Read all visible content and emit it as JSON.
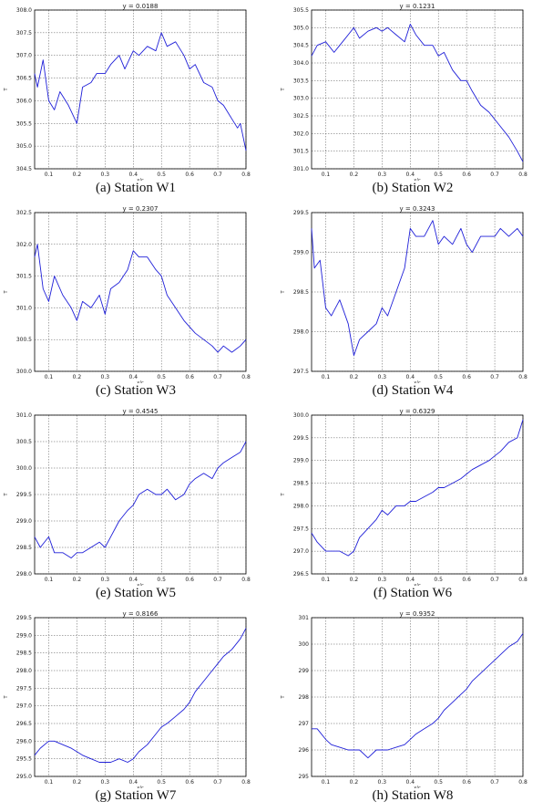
{
  "chart_data": [
    {
      "type": "line",
      "title": "y = 0.0188",
      "caption": "(a) Station W1",
      "xlabel": "x/c",
      "ylabel": "T",
      "xlim": [
        0.05,
        0.8
      ],
      "ylim": [
        304.5,
        308.0
      ],
      "xticks": [
        "0.1",
        "0.2",
        "0.3",
        "0.4",
        "0.5",
        "0.6",
        "0.7",
        "0.8"
      ],
      "yticks": [
        "304.5",
        "305.0",
        "305.5",
        "306.0",
        "306.5",
        "307.0",
        "307.5",
        "308.0"
      ],
      "grid": true,
      "series": [
        {
          "x": [
            0.05,
            0.06,
            0.08,
            0.1,
            0.12,
            0.14,
            0.17,
            0.2,
            0.22,
            0.25,
            0.27,
            0.3,
            0.32,
            0.35,
            0.37,
            0.4,
            0.42,
            0.45,
            0.48,
            0.5,
            0.52,
            0.55,
            0.58,
            0.6,
            0.62,
            0.65,
            0.68,
            0.7,
            0.72,
            0.75,
            0.77,
            0.78,
            0.8
          ],
          "y": [
            306.6,
            306.3,
            306.9,
            306.0,
            305.8,
            306.2,
            305.9,
            305.5,
            306.3,
            306.4,
            306.6,
            306.6,
            306.8,
            307.0,
            306.7,
            307.1,
            307.0,
            307.2,
            307.1,
            307.5,
            307.2,
            307.3,
            307.0,
            306.7,
            306.8,
            306.4,
            306.3,
            306.0,
            305.9,
            305.6,
            305.4,
            305.5,
            304.9
          ]
        }
      ]
    },
    {
      "type": "line",
      "title": "y = 0.1231",
      "caption": "(b) Station W2",
      "xlabel": "x/c",
      "ylabel": "T",
      "xlim": [
        0.05,
        0.8
      ],
      "ylim": [
        301.0,
        305.5
      ],
      "xticks": [
        "0.1",
        "0.2",
        "0.3",
        "0.4",
        "0.5",
        "0.6",
        "0.7",
        "0.8"
      ],
      "yticks": [
        "301.0",
        "301.5",
        "302.0",
        "302.5",
        "303.0",
        "303.5",
        "304.0",
        "304.5",
        "305.0",
        "305.5"
      ],
      "grid": true,
      "series": [
        {
          "x": [
            0.05,
            0.07,
            0.1,
            0.13,
            0.15,
            0.18,
            0.2,
            0.22,
            0.25,
            0.28,
            0.3,
            0.32,
            0.35,
            0.38,
            0.4,
            0.42,
            0.45,
            0.48,
            0.5,
            0.52,
            0.55,
            0.58,
            0.6,
            0.62,
            0.65,
            0.68,
            0.7,
            0.72,
            0.75,
            0.78,
            0.8
          ],
          "y": [
            304.2,
            304.5,
            304.6,
            304.3,
            304.5,
            304.8,
            305.0,
            304.7,
            304.9,
            305.0,
            304.9,
            305.0,
            304.8,
            304.6,
            305.1,
            304.8,
            304.5,
            304.5,
            304.2,
            304.3,
            303.8,
            303.5,
            303.5,
            303.2,
            302.8,
            302.6,
            302.4,
            302.2,
            301.9,
            301.5,
            301.2
          ]
        }
      ]
    },
    {
      "type": "line",
      "title": "y = 0.2307",
      "caption": "(c) Station W3",
      "xlabel": "x/c",
      "ylabel": "T",
      "xlim": [
        0.05,
        0.8
      ],
      "ylim": [
        300.0,
        302.5
      ],
      "xticks": [
        "0.1",
        "0.2",
        "0.3",
        "0.4",
        "0.5",
        "0.6",
        "0.7",
        "0.8"
      ],
      "yticks": [
        "300.0",
        "300.5",
        "301.0",
        "301.5",
        "302.0",
        "302.5"
      ],
      "grid": true,
      "series": [
        {
          "x": [
            0.05,
            0.06,
            0.08,
            0.1,
            0.12,
            0.15,
            0.18,
            0.2,
            0.22,
            0.25,
            0.28,
            0.3,
            0.32,
            0.35,
            0.38,
            0.4,
            0.42,
            0.45,
            0.48,
            0.5,
            0.52,
            0.55,
            0.58,
            0.6,
            0.62,
            0.65,
            0.68,
            0.7,
            0.72,
            0.75,
            0.78,
            0.8
          ],
          "y": [
            301.8,
            302.0,
            301.3,
            301.1,
            301.5,
            301.2,
            301.0,
            300.8,
            301.1,
            301.0,
            301.2,
            300.9,
            301.3,
            301.4,
            301.6,
            301.9,
            301.8,
            301.8,
            301.6,
            301.5,
            301.2,
            301.0,
            300.8,
            300.7,
            300.6,
            300.5,
            300.4,
            300.3,
            300.4,
            300.3,
            300.4,
            300.5
          ]
        }
      ]
    },
    {
      "type": "line",
      "title": "y = 0.3243",
      "caption": "(d) Station W4",
      "xlabel": "x/c",
      "ylabel": "T",
      "xlim": [
        0.05,
        0.8
      ],
      "ylim": [
        297.5,
        299.5
      ],
      "xticks": [
        "0.1",
        "0.2",
        "0.3",
        "0.4",
        "0.5",
        "0.6",
        "0.7",
        "0.8"
      ],
      "yticks": [
        "297.5",
        "298.0",
        "298.5",
        "299.0",
        "299.5"
      ],
      "grid": true,
      "series": [
        {
          "x": [
            0.05,
            0.06,
            0.08,
            0.1,
            0.12,
            0.15,
            0.18,
            0.2,
            0.22,
            0.25,
            0.28,
            0.3,
            0.32,
            0.35,
            0.38,
            0.4,
            0.42,
            0.45,
            0.48,
            0.5,
            0.52,
            0.55,
            0.58,
            0.6,
            0.62,
            0.65,
            0.68,
            0.7,
            0.72,
            0.75,
            0.78,
            0.8
          ],
          "y": [
            299.3,
            298.8,
            298.9,
            298.3,
            298.2,
            298.4,
            298.1,
            297.7,
            297.9,
            298.0,
            298.1,
            298.3,
            298.2,
            298.5,
            298.8,
            299.3,
            299.2,
            299.2,
            299.4,
            299.1,
            299.2,
            299.1,
            299.3,
            299.1,
            299.0,
            299.2,
            299.2,
            299.2,
            299.3,
            299.2,
            299.3,
            299.2
          ]
        }
      ]
    },
    {
      "type": "line",
      "title": "y = 0.4545",
      "caption": "(e) Station W5",
      "xlabel": "x/c",
      "ylabel": "T",
      "xlim": [
        0.05,
        0.8
      ],
      "ylim": [
        298.0,
        301.0
      ],
      "xticks": [
        "0.1",
        "0.2",
        "0.3",
        "0.4",
        "0.5",
        "0.6",
        "0.7",
        "0.8"
      ],
      "yticks": [
        "298.0",
        "298.5",
        "299.0",
        "299.5",
        "300.0",
        "300.5",
        "301.0"
      ],
      "grid": true,
      "series": [
        {
          "x": [
            0.05,
            0.07,
            0.1,
            0.12,
            0.15,
            0.18,
            0.2,
            0.22,
            0.25,
            0.28,
            0.3,
            0.32,
            0.35,
            0.38,
            0.4,
            0.42,
            0.45,
            0.48,
            0.5,
            0.52,
            0.55,
            0.58,
            0.6,
            0.62,
            0.65,
            0.68,
            0.7,
            0.72,
            0.75,
            0.78,
            0.8
          ],
          "y": [
            298.7,
            298.5,
            298.7,
            298.4,
            298.4,
            298.3,
            298.4,
            298.4,
            298.5,
            298.6,
            298.5,
            298.7,
            299.0,
            299.2,
            299.3,
            299.5,
            299.6,
            299.5,
            299.5,
            299.6,
            299.4,
            299.5,
            299.7,
            299.8,
            299.9,
            299.8,
            300.0,
            300.1,
            300.2,
            300.3,
            300.5
          ]
        }
      ]
    },
    {
      "type": "line",
      "title": "y = 0.6329",
      "caption": "(f) Station W6",
      "xlabel": "x/c",
      "ylabel": "T",
      "xlim": [
        0.05,
        0.8
      ],
      "ylim": [
        296.5,
        300.0
      ],
      "xticks": [
        "0.1",
        "0.2",
        "0.3",
        "0.4",
        "0.5",
        "0.6",
        "0.7",
        "0.8"
      ],
      "yticks": [
        "296.5",
        "297.0",
        "297.5",
        "298.0",
        "298.5",
        "299.0",
        "299.5",
        "300.0"
      ],
      "grid": true,
      "series": [
        {
          "x": [
            0.05,
            0.07,
            0.1,
            0.12,
            0.15,
            0.18,
            0.2,
            0.22,
            0.25,
            0.28,
            0.3,
            0.32,
            0.35,
            0.38,
            0.4,
            0.42,
            0.45,
            0.48,
            0.5,
            0.52,
            0.55,
            0.58,
            0.6,
            0.62,
            0.65,
            0.68,
            0.7,
            0.72,
            0.75,
            0.78,
            0.8
          ],
          "y": [
            297.4,
            297.2,
            297.0,
            297.0,
            297.0,
            296.9,
            297.0,
            297.3,
            297.5,
            297.7,
            297.9,
            297.8,
            298.0,
            298.0,
            298.1,
            298.1,
            298.2,
            298.3,
            298.4,
            298.4,
            298.5,
            298.6,
            298.7,
            298.8,
            298.9,
            299.0,
            299.1,
            299.2,
            299.4,
            299.5,
            299.9
          ]
        }
      ]
    },
    {
      "type": "line",
      "title": "y = 0.8166",
      "caption": "(g) Station W7",
      "xlabel": "x/c",
      "ylabel": "T",
      "xlim": [
        0.05,
        0.8
      ],
      "ylim": [
        295.0,
        299.5
      ],
      "xticks": [
        "0.1",
        "0.2",
        "0.3",
        "0.4",
        "0.5",
        "0.6",
        "0.7",
        "0.8"
      ],
      "yticks": [
        "295.0",
        "295.5",
        "296.0",
        "296.5",
        "297.0",
        "297.5",
        "298.0",
        "298.5",
        "299.0",
        "299.5"
      ],
      "grid": true,
      "series": [
        {
          "x": [
            0.05,
            0.07,
            0.1,
            0.12,
            0.15,
            0.18,
            0.2,
            0.22,
            0.25,
            0.28,
            0.3,
            0.32,
            0.35,
            0.38,
            0.4,
            0.42,
            0.45,
            0.48,
            0.5,
            0.52,
            0.55,
            0.58,
            0.6,
            0.62,
            0.65,
            0.68,
            0.7,
            0.72,
            0.75,
            0.78,
            0.8
          ],
          "y": [
            295.6,
            295.8,
            296.0,
            296.0,
            295.9,
            295.8,
            295.7,
            295.6,
            295.5,
            295.4,
            295.4,
            295.4,
            295.5,
            295.4,
            295.5,
            295.7,
            295.9,
            296.2,
            296.4,
            296.5,
            296.7,
            296.9,
            297.1,
            297.4,
            297.7,
            298.0,
            298.2,
            298.4,
            298.6,
            298.9,
            299.2
          ]
        }
      ]
    },
    {
      "type": "line",
      "title": "y = 0.9352",
      "caption": "(h) Station W8",
      "xlabel": "x/c",
      "ylabel": "T",
      "xlim": [
        0.05,
        0.8
      ],
      "ylim": [
        295,
        301
      ],
      "xticks": [
        "0.1",
        "0.2",
        "0.3",
        "0.4",
        "0.5",
        "0.6",
        "0.7",
        "0.8"
      ],
      "yticks": [
        "295",
        "296",
        "297",
        "298",
        "299",
        "300",
        "301"
      ],
      "grid": true,
      "series": [
        {
          "x": [
            0.05,
            0.07,
            0.1,
            0.12,
            0.15,
            0.18,
            0.2,
            0.22,
            0.25,
            0.28,
            0.3,
            0.32,
            0.35,
            0.38,
            0.4,
            0.42,
            0.45,
            0.48,
            0.5,
            0.52,
            0.55,
            0.58,
            0.6,
            0.62,
            0.65,
            0.68,
            0.7,
            0.72,
            0.75,
            0.78,
            0.8
          ],
          "y": [
            296.8,
            296.8,
            296.4,
            296.2,
            296.1,
            296.0,
            296.0,
            296.0,
            295.7,
            296.0,
            296.0,
            296.0,
            296.1,
            296.2,
            296.4,
            296.6,
            296.8,
            297.0,
            297.2,
            297.5,
            297.8,
            298.1,
            298.3,
            298.6,
            298.9,
            299.2,
            299.4,
            299.6,
            299.9,
            300.1,
            300.4
          ]
        }
      ]
    }
  ]
}
